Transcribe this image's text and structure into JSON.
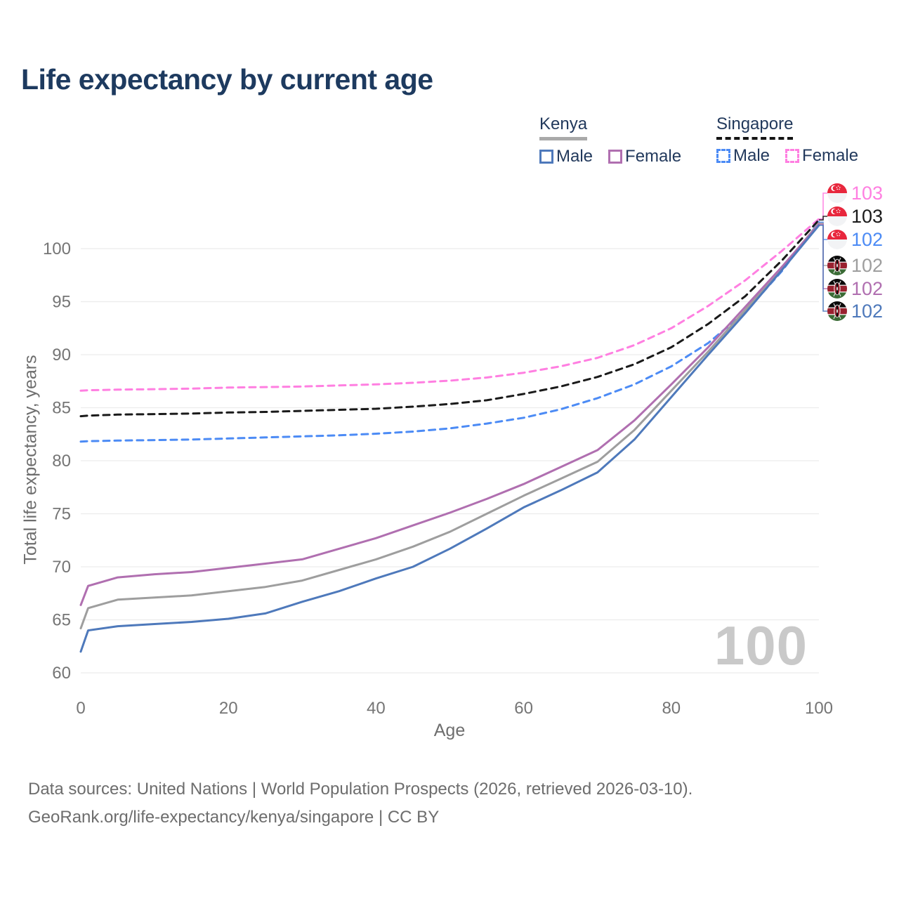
{
  "title": "Life expectancy by current age",
  "watermark": "100",
  "legend": {
    "groups": [
      {
        "country": "Kenya",
        "line_style": "solid",
        "underline_color": "#a9a9a9",
        "items": [
          {
            "label": "Male",
            "color": "#4e79bb",
            "dashed": false
          },
          {
            "label": "Female",
            "color": "#b06fb0",
            "dashed": false
          }
        ]
      },
      {
        "country": "Singapore",
        "line_style": "dashed",
        "underline_color": "#141414",
        "items": [
          {
            "label": "Male",
            "color": "#4c8bf5",
            "dashed": true
          },
          {
            "label": "Female",
            "color": "#ff7fe1",
            "dashed": true
          }
        ]
      }
    ]
  },
  "footer": {
    "line1": "Data sources: United Nations | World Population Prospects (2026, retrieved 2026-03-10).",
    "line2": "GeoRank.org/life-expectancy/kenya/singapore | CC BY"
  },
  "colors": {
    "title": "#1d3a5f",
    "legend_text": "#22395c",
    "axis_text": "#757575",
    "gridline": "#ececec",
    "watermark": "#c9c9c9",
    "footer_text": "#6d6d6d"
  },
  "chart_data": {
    "type": "line",
    "title": "Life expectancy by current age",
    "xlabel": "Age",
    "ylabel": "Total life expectancy, years",
    "xlim": [
      0,
      100
    ],
    "ylim": [
      60,
      100
    ],
    "xticks": [
      0,
      20,
      40,
      60,
      80,
      100
    ],
    "yticks": [
      60,
      65,
      70,
      75,
      80,
      85,
      90,
      95,
      100
    ],
    "grid": "horizontal",
    "legend_position": "top-right",
    "age_counter": "100",
    "x": [
      0,
      1,
      5,
      10,
      15,
      20,
      25,
      30,
      35,
      40,
      45,
      50,
      55,
      60,
      65,
      70,
      75,
      80,
      85,
      90,
      95,
      100
    ],
    "series": [
      {
        "name": "Singapore Female",
        "country": "Singapore",
        "sex": "Female",
        "flag": "singapore",
        "color": "#ff7fe1",
        "dashed": true,
        "end_label": "103",
        "values": [
          86.6,
          86.65,
          86.7,
          86.75,
          86.8,
          86.9,
          86.95,
          87.0,
          87.1,
          87.2,
          87.35,
          87.55,
          87.85,
          88.3,
          88.9,
          89.7,
          90.9,
          92.5,
          94.6,
          97.0,
          99.8,
          102.8
        ]
      },
      {
        "name": "Singapore Both sexes",
        "country": "Singapore",
        "sex": "Both sexes",
        "flag": "singapore",
        "color": "#1a1a1a",
        "dashed": true,
        "end_label": "103",
        "values": [
          84.2,
          84.25,
          84.35,
          84.4,
          84.45,
          84.55,
          84.6,
          84.7,
          84.8,
          84.9,
          85.1,
          85.35,
          85.7,
          86.3,
          87.0,
          87.9,
          89.1,
          90.7,
          92.9,
          95.5,
          98.9,
          102.7
        ]
      },
      {
        "name": "Singapore Male",
        "country": "Singapore",
        "sex": "Male",
        "flag": "singapore",
        "color": "#4c8bf5",
        "dashed": true,
        "end_label": "102",
        "values": [
          81.8,
          81.85,
          81.9,
          81.95,
          82.0,
          82.1,
          82.2,
          82.3,
          82.4,
          82.55,
          82.75,
          83.05,
          83.5,
          84.05,
          84.85,
          85.9,
          87.2,
          88.9,
          91.1,
          94.0,
          97.9,
          102.5
        ]
      },
      {
        "name": "Kenya Both sexes",
        "country": "Kenya",
        "sex": "Both sexes",
        "flag": "kenya",
        "color": "#9e9e9e",
        "dashed": false,
        "end_label": "102",
        "values": [
          64.2,
          66.1,
          66.9,
          67.1,
          67.3,
          67.7,
          68.1,
          68.7,
          69.7,
          70.7,
          71.9,
          73.3,
          75.0,
          76.7,
          78.3,
          79.9,
          82.9,
          86.6,
          90.3,
          94.2,
          98.2,
          102.4
        ]
      },
      {
        "name": "Kenya Female",
        "country": "Kenya",
        "sex": "Female",
        "flag": "kenya",
        "color": "#b06fb0",
        "dashed": false,
        "end_label": "102",
        "values": [
          66.4,
          68.2,
          69.0,
          69.3,
          69.5,
          69.9,
          70.3,
          70.7,
          71.7,
          72.7,
          73.9,
          75.1,
          76.4,
          77.8,
          79.4,
          81.0,
          83.8,
          87.2,
          90.7,
          94.5,
          98.3,
          102.3
        ]
      },
      {
        "name": "Kenya Male",
        "country": "Kenya",
        "sex": "Male",
        "flag": "kenya",
        "color": "#4e79bb",
        "dashed": false,
        "end_label": "102",
        "values": [
          62.0,
          64.0,
          64.4,
          64.6,
          64.8,
          65.1,
          65.6,
          66.7,
          67.7,
          68.9,
          70.0,
          71.7,
          73.6,
          75.6,
          77.2,
          78.9,
          82.0,
          86.0,
          90.0,
          93.9,
          98.0,
          102.2
        ]
      }
    ]
  }
}
